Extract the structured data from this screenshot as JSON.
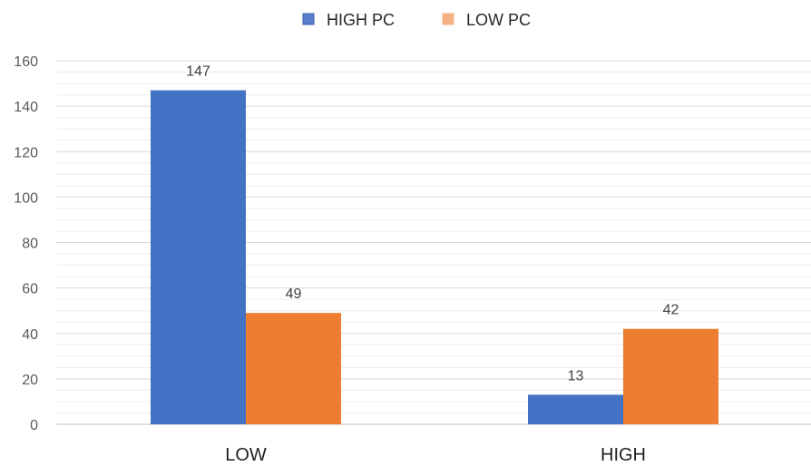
{
  "chart_data": {
    "type": "bar",
    "categories": [
      "LOW",
      "HIGH"
    ],
    "series": [
      {
        "name": "HIGH PC",
        "values": [
          147,
          13
        ],
        "color": "#4472C4",
        "legend_color": "#5B7FCF",
        "legend_border": "#3A5FA8"
      },
      {
        "name": "LOW PC",
        "values": [
          49,
          42
        ],
        "color": "#ED7D31",
        "legend_color": "#F4B183",
        "legend_border": "#F4B183"
      }
    ],
    "ylim": [
      0,
      160
    ],
    "yticks": [
      0,
      20,
      40,
      60,
      80,
      100,
      120,
      140,
      160
    ],
    "minor_step": 5,
    "grid": true,
    "legend_position": "top-center",
    "data_labels": true,
    "title": "",
    "xlabel": "",
    "ylabel": ""
  }
}
